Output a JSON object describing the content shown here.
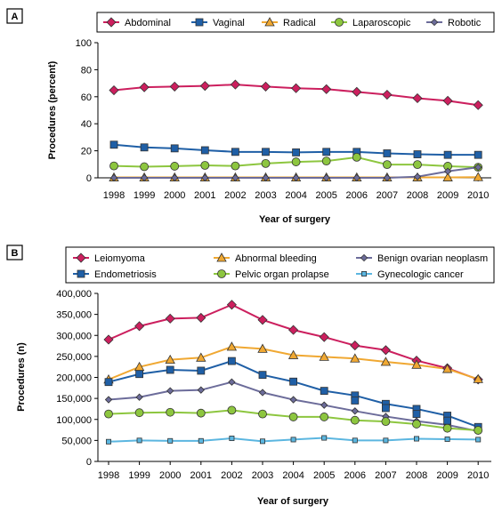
{
  "chart_data": [
    {
      "panel": "A",
      "type": "line",
      "x": [
        "1998",
        "1999",
        "2000",
        "2001",
        "2002",
        "2003",
        "2004",
        "2005",
        "2006",
        "2007",
        "2008",
        "2009",
        "2010"
      ],
      "xlabel": "Year of surgery",
      "ylabel": "Procedures (percent)",
      "ylim": [
        0,
        100
      ],
      "yticks": [
        "0",
        "20",
        "40",
        "60",
        "80",
        "100"
      ],
      "legend_position": "top",
      "series": [
        {
          "name": "Abdominal",
          "color": "#cc1f5e",
          "marker": "diamond",
          "values": [
            64.8,
            67,
            67.5,
            68,
            69,
            67.5,
            66.3,
            65.6,
            63.6,
            61.5,
            58.9,
            57,
            53.8
          ]
        },
        {
          "name": "Vaginal",
          "color": "#1f5fa6",
          "marker": "square",
          "values": [
            24.5,
            22.5,
            21.8,
            20.4,
            19.2,
            19.2,
            18.8,
            19.2,
            19.2,
            18.1,
            17.4,
            17,
            17
          ]
        },
        {
          "name": "Radical",
          "color": "#f0a832",
          "marker": "triangle",
          "values": [
            0.3,
            0.3,
            0.3,
            0.3,
            0.3,
            0.3,
            0.3,
            0.3,
            0.3,
            0.3,
            0.3,
            0.3,
            0.5
          ]
        },
        {
          "name": "Laparoscopic",
          "color": "#8dc63f",
          "marker": "circle",
          "values": [
            8.8,
            8.2,
            8.6,
            9.2,
            8.8,
            10.6,
            11.8,
            12.4,
            15.2,
            9.8,
            9.8,
            8.6,
            7.8
          ]
        },
        {
          "name": "Robotic",
          "color": "#6c6c9a",
          "marker": "smalldiamond",
          "values": [
            0,
            0,
            0,
            0,
            0,
            0,
            0,
            0,
            0,
            0,
            0.8,
            4.8,
            7.8
          ]
        }
      ]
    },
    {
      "panel": "B",
      "type": "line",
      "x": [
        "1998",
        "1999",
        "2000",
        "2001",
        "2002",
        "2003",
        "2004",
        "2005",
        "2006",
        "2007",
        "2008",
        "2009",
        "2010"
      ],
      "xlabel": "Year of surgery",
      "ylabel": "Procedures (n)",
      "ylim": [
        0,
        400000
      ],
      "yticks": [
        "0",
        "50,000",
        "100,000",
        "150,000",
        "200,000",
        "250,000",
        "300,000",
        "350,000",
        "400,000"
      ],
      "legend_position": "top",
      "series": [
        {
          "name": "Leiomyoma",
          "color": "#cc1f5e",
          "marker": "diamond",
          "values": [
            290000,
            322000,
            340000,
            342000,
            373000,
            337000,
            313000,
            296000,
            276000,
            265000,
            240000,
            222000,
            195000
          ]
        },
        {
          "name": "Abnormal bleeding",
          "color": "#f0a832",
          "marker": "triangle",
          "values": [
            195000,
            225000,
            242000,
            247000,
            273000,
            268000,
            253000,
            249000,
            245000,
            237000,
            230000,
            220000,
            196000
          ]
        },
        {
          "name": "Benign ovarian neoplasm",
          "color": "#6c6c9a",
          "marker": "smalldiamond",
          "values": [
            147000,
            153000,
            168000,
            170000,
            189000,
            164000,
            147000,
            134000,
            120000,
            107000,
            96000,
            87000,
            72000
          ]
        },
        {
          "name": "Endometriosis",
          "color": "#1f5fa6",
          "marker": "square",
          "values": [
            189000,
            208000,
            218000,
            216000,
            239000,
            206000,
            190000,
            168000,
            157000,
            137000,
            125000,
            109000,
            82000
          ]
        },
        {
          "name": "Pelvic organ prolapse",
          "color": "#8dc63f",
          "marker": "circle",
          "values": [
            113000,
            116000,
            117000,
            115000,
            122000,
            113000,
            106000,
            106000,
            98000,
            95000,
            89000,
            79000,
            74000
          ]
        },
        {
          "name": "Gynecologic cancer",
          "color": "#5bb6e0",
          "marker": "smallsquare",
          "values": [
            47000,
            50000,
            49000,
            49000,
            55000,
            48000,
            52000,
            56000,
            50000,
            50000,
            54000,
            53000,
            52000
          ]
        }
      ],
      "extra_markers": [
        {
          "series": "Endometriosis",
          "x": "2006",
          "value": 145000
        },
        {
          "series": "Endometriosis",
          "x": "2007",
          "value": 127000
        },
        {
          "series": "Endometriosis",
          "x": "2008",
          "value": 113000
        },
        {
          "series": "Endometriosis",
          "x": "2009",
          "value": 97000
        }
      ]
    }
  ]
}
